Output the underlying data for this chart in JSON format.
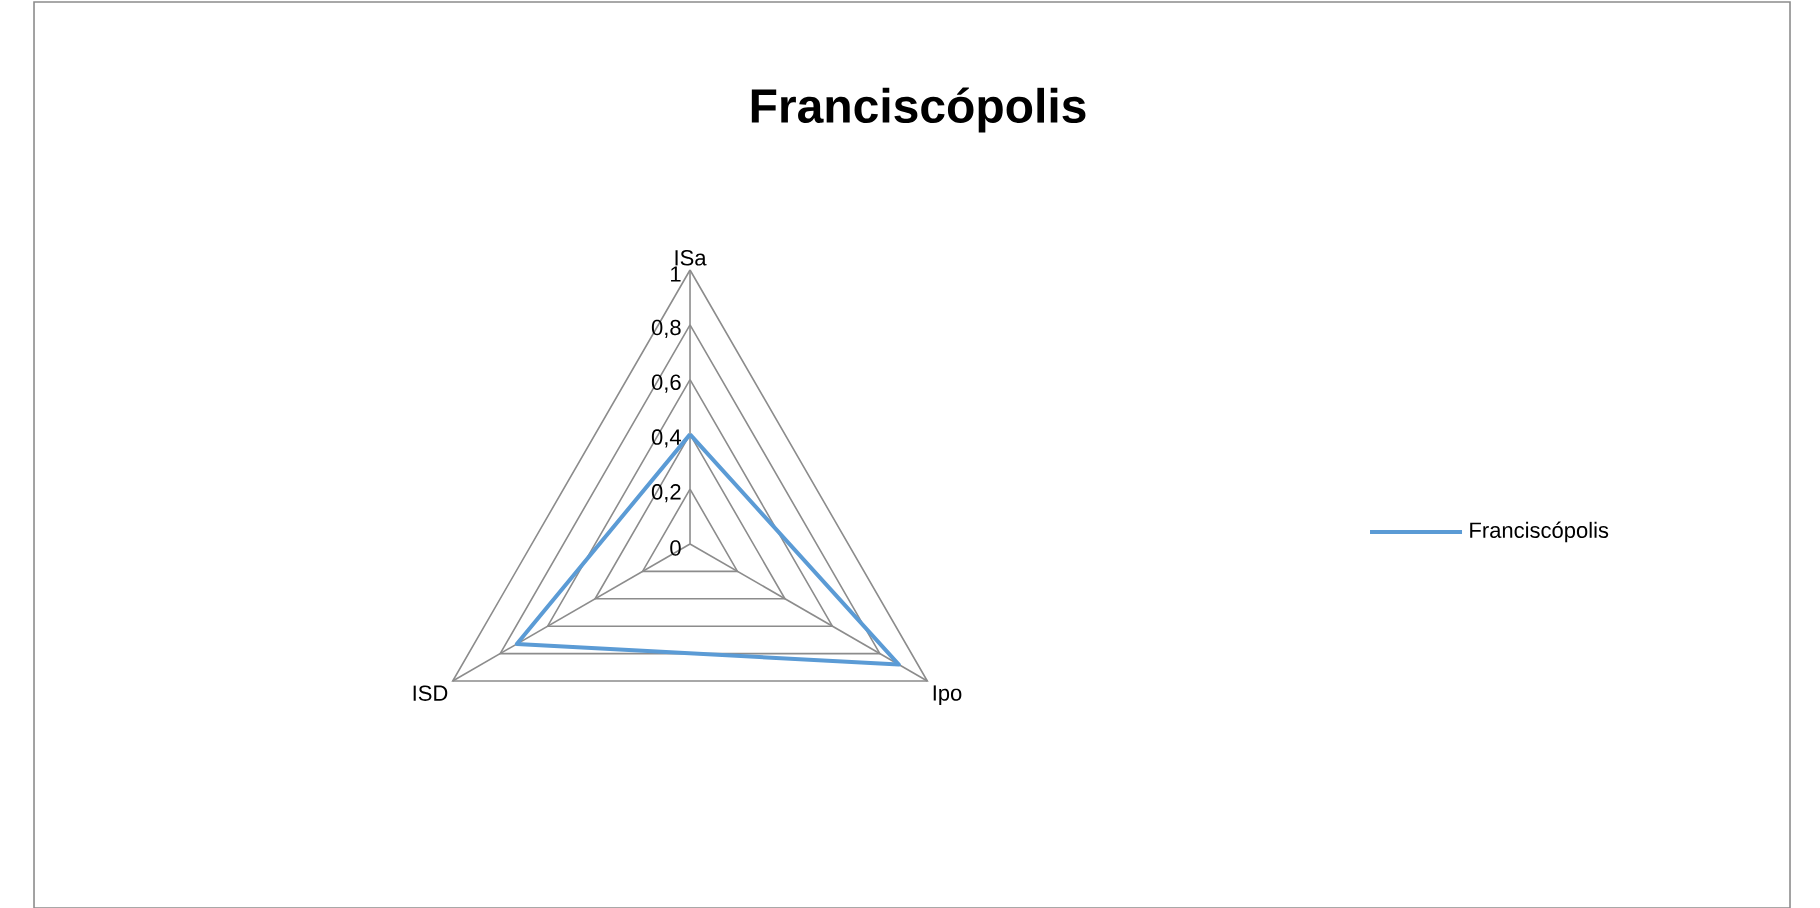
{
  "chart_data": {
    "type": "radar",
    "title": "Franciscópolis",
    "categories": [
      "ISa",
      "Ipo",
      "ISD"
    ],
    "series": [
      {
        "name": "Franciscópolis",
        "color": "#5b9bd5",
        "values": [
          0.4,
          0.88,
          0.73
        ]
      }
    ],
    "ylim": [
      0,
      1
    ],
    "yticks": [
      {
        "value": 0,
        "label": "0"
      },
      {
        "value": 0.2,
        "label": "0,2"
      },
      {
        "value": 0.4,
        "label": "0,4"
      },
      {
        "value": 0.6,
        "label": "0,6"
      },
      {
        "value": 0.8,
        "label": "0,8"
      },
      {
        "value": 1,
        "label": "1"
      }
    ],
    "grid": true,
    "legend": "right"
  }
}
